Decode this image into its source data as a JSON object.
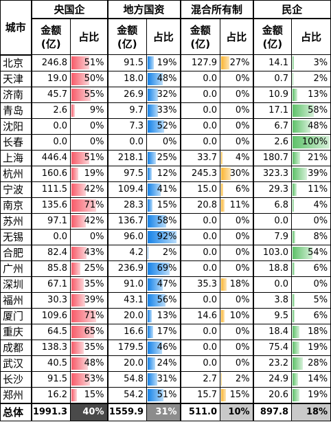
{
  "header": {
    "city_label": "城市",
    "groups": [
      "央国企",
      "地方国资",
      "混合所有制",
      "民企"
    ],
    "amount_label": "金额\n(亿)",
    "share_label": "占比"
  },
  "rows": [
    {
      "city": "北京",
      "v": [
        "246.8",
        "91.5",
        "127.9",
        "14.1"
      ],
      "p": [
        51,
        19,
        27,
        3
      ]
    },
    {
      "city": "天津",
      "v": [
        "19.0",
        "18.0",
        "0.0",
        "0.7"
      ],
      "p": [
        50,
        48,
        0,
        2
      ]
    },
    {
      "city": "济南",
      "v": [
        "45.7",
        "26.9",
        "0.0",
        "10.9"
      ],
      "p": [
        55,
        32,
        0,
        13
      ]
    },
    {
      "city": "青岛",
      "v": [
        "2.6",
        "9.7",
        "0.0",
        "17.1"
      ],
      "p": [
        9,
        33,
        0,
        58
      ]
    },
    {
      "city": "沈阳",
      "v": [
        "0.0",
        "7.3",
        "0.0",
        "6.7"
      ],
      "p": [
        0,
        52,
        0,
        48
      ]
    },
    {
      "city": "长春",
      "v": [
        "0.0",
        "0.0",
        "0.0",
        "2.6"
      ],
      "p": [
        0,
        0,
        0,
        100
      ]
    },
    {
      "city": "上海",
      "v": [
        "446.4",
        "218.1",
        "33.7",
        "180.7"
      ],
      "p": [
        51,
        25,
        4,
        21
      ]
    },
    {
      "city": "杭州",
      "v": [
        "160.6",
        "97.5",
        "245.3",
        "323.3"
      ],
      "p": [
        19,
        12,
        30,
        39
      ]
    },
    {
      "city": "宁波",
      "v": [
        "111.5",
        "109.4",
        "15.0",
        "29.3"
      ],
      "p": [
        42,
        41,
        6,
        11
      ]
    },
    {
      "city": "南京",
      "v": [
        "135.6",
        "28.3",
        "20.8",
        "6.8"
      ],
      "p": [
        71,
        15,
        11,
        4
      ]
    },
    {
      "city": "苏州",
      "v": [
        "97.1",
        "136.7",
        "0.0",
        "0.0"
      ],
      "p": [
        42,
        58,
        0,
        0
      ]
    },
    {
      "city": "无锡",
      "v": [
        "0.0",
        "96.0",
        "0.0",
        "7.9"
      ],
      "p": [
        0,
        92,
        0,
        8
      ]
    },
    {
      "city": "合肥",
      "v": [
        "82.4",
        "4.2",
        "0.0",
        "103.0"
      ],
      "p": [
        43,
        2,
        0,
        54
      ]
    },
    {
      "city": "广州",
      "v": [
        "85.8",
        "236.9",
        "0.0",
        "18.8"
      ],
      "p": [
        25,
        69,
        0,
        6
      ]
    },
    {
      "city": "深圳",
      "v": [
        "67.1",
        "91.0",
        "35.3",
        "0.0"
      ],
      "p": [
        35,
        47,
        18,
        0
      ]
    },
    {
      "city": "福州",
      "v": [
        "30.3",
        "43.1",
        "0.0",
        "3.8"
      ],
      "p": [
        39,
        56,
        0,
        5
      ]
    },
    {
      "city": "厦门",
      "v": [
        "109.6",
        "20.0",
        "14.6",
        "9.5"
      ],
      "p": [
        71,
        13,
        10,
        6
      ]
    },
    {
      "city": "重庆",
      "v": [
        "64.5",
        "16.6",
        "0.0",
        "18.4"
      ],
      "p": [
        65,
        17,
        0,
        18
      ]
    },
    {
      "city": "成都",
      "v": [
        "138.3",
        "179.5",
        "0.0",
        "75.4"
      ],
      "p": [
        35,
        46,
        0,
        19
      ]
    },
    {
      "city": "武汉",
      "v": [
        "40.5",
        "20.0",
        "0.0",
        "23.2"
      ],
      "p": [
        48,
        24,
        0,
        28
      ]
    },
    {
      "city": "长沙",
      "v": [
        "91.5",
        "54.8",
        "2.7",
        "24.9"
      ],
      "p": [
        53,
        31,
        2,
        14
      ]
    },
    {
      "city": "郑州",
      "v": [
        "16.2",
        "54.2",
        "15.7",
        "20.6"
      ],
      "p": [
        15,
        51,
        15,
        19
      ]
    }
  ],
  "total": {
    "label": "总体",
    "v": [
      "1991.3",
      "1559.9",
      "511.0",
      "897.8"
    ],
    "p": [
      "40%",
      "31%",
      "10%",
      "18%"
    ]
  },
  "colors": {
    "state_owned": "#f75a68",
    "local_state": "#1582e8",
    "mixed": "#fbb431",
    "private": "#5ec169"
  }
}
